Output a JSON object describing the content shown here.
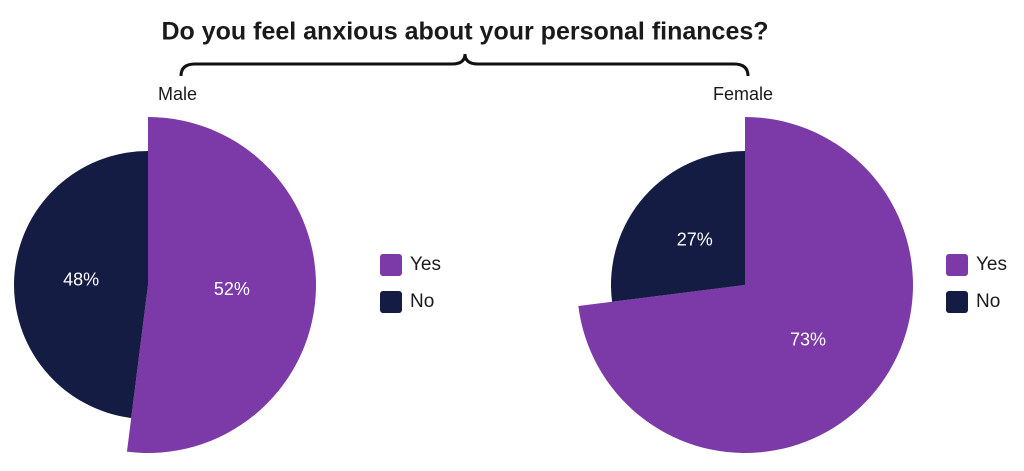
{
  "title": "Do you feel anxious about your personal finances?",
  "chart_data": [
    {
      "type": "pie",
      "title": "Male",
      "categories": [
        "Yes",
        "No"
      ],
      "values": [
        52,
        48
      ],
      "value_labels": [
        "52%",
        "48%"
      ],
      "colors": [
        "#7b3aa7",
        "#141c44"
      ]
    },
    {
      "type": "pie",
      "title": "Female",
      "categories": [
        "Yes",
        "No"
      ],
      "values": [
        73,
        27
      ],
      "value_labels": [
        "73%",
        "27%"
      ],
      "colors": [
        "#7b3aa7",
        "#141c44"
      ]
    }
  ]
}
